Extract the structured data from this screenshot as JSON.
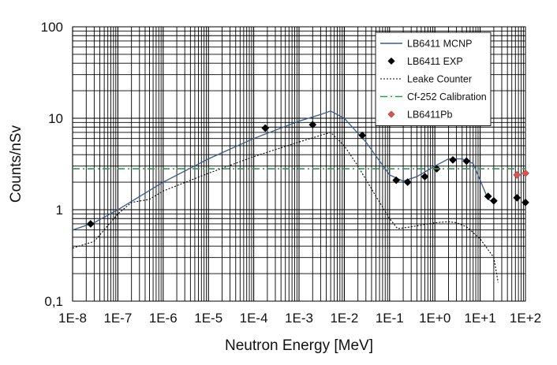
{
  "chart_data": {
    "type": "scatter",
    "xscale": "log",
    "yscale": "log",
    "xlim": [
      1e-08,
      100
    ],
    "ylim": [
      0.1,
      100
    ],
    "xlabel": "Neutron Energy [MeV]",
    "ylabel": "Counts/nSv",
    "x_tick_labels": [
      "1E-8",
      "1E-7",
      "1E-6",
      "1E-5",
      "1E-4",
      "1E-3",
      "1E-2",
      "1E-1",
      "1E+0",
      "1E+1",
      "1E+2"
    ],
    "y_tick_labels": [
      "0,1",
      "1",
      "10",
      "100"
    ],
    "grid": true,
    "legend_position": "top-right",
    "series": [
      {
        "name": "LB6411 MCNP",
        "style": "line",
        "color": "#3a5a8c",
        "x": [
          1e-08,
          3e-08,
          1e-07,
          1e-06,
          1e-05,
          0.0001,
          0.001,
          0.003,
          0.005,
          0.01,
          0.03,
          0.1,
          0.2,
          0.4,
          1,
          2,
          4,
          7,
          10,
          15,
          20
        ],
        "y": [
          0.6,
          0.72,
          1.0,
          2.0,
          3.6,
          6.0,
          9.3,
          11.0,
          12.0,
          10.0,
          5.5,
          2.4,
          2.05,
          2.3,
          3.0,
          3.6,
          3.6,
          3.2,
          2.1,
          1.3,
          1.2
        ]
      },
      {
        "name": "LB6411 EXP",
        "style": "marker",
        "marker": "diamond",
        "color": "#000000",
        "x": [
          2.5e-08,
          0.00018,
          0.002,
          0.025,
          0.14,
          0.25,
          0.6,
          1.1,
          2.5,
          5,
          15,
          20,
          65,
          100
        ],
        "y": [
          0.7,
          7.8,
          8.5,
          6.5,
          2.1,
          2.0,
          2.3,
          2.8,
          3.5,
          3.4,
          1.4,
          1.25,
          1.35,
          1.2
        ]
      },
      {
        "name": "Leake Counter",
        "style": "dotted",
        "color": "#000000",
        "x": [
          1e-08,
          3e-08,
          1e-07,
          2e-07,
          5e-07,
          1e-06,
          1e-05,
          0.0001,
          0.001,
          0.003,
          0.005,
          0.01,
          0.02,
          0.05,
          0.1,
          0.15,
          0.3,
          1,
          2,
          3,
          5,
          10,
          20,
          25
        ],
        "y": [
          0.38,
          0.45,
          0.9,
          1.2,
          1.3,
          1.6,
          2.5,
          3.8,
          5.5,
          6.5,
          7.0,
          5.0,
          3.0,
          1.4,
          0.8,
          0.62,
          0.65,
          0.72,
          0.74,
          0.72,
          0.65,
          0.48,
          0.3,
          0.16
        ]
      },
      {
        "name": "Cf-252 Calibration",
        "style": "dash-dot",
        "color": "#2e9b57",
        "x": [
          1e-08,
          100
        ],
        "y": [
          2.8,
          2.8
        ]
      },
      {
        "name": "LB6411Pb",
        "style": "marker",
        "marker": "diamond",
        "color": "#d9534f",
        "x": [
          65,
          100
        ],
        "y": [
          2.4,
          2.5
        ]
      }
    ]
  }
}
